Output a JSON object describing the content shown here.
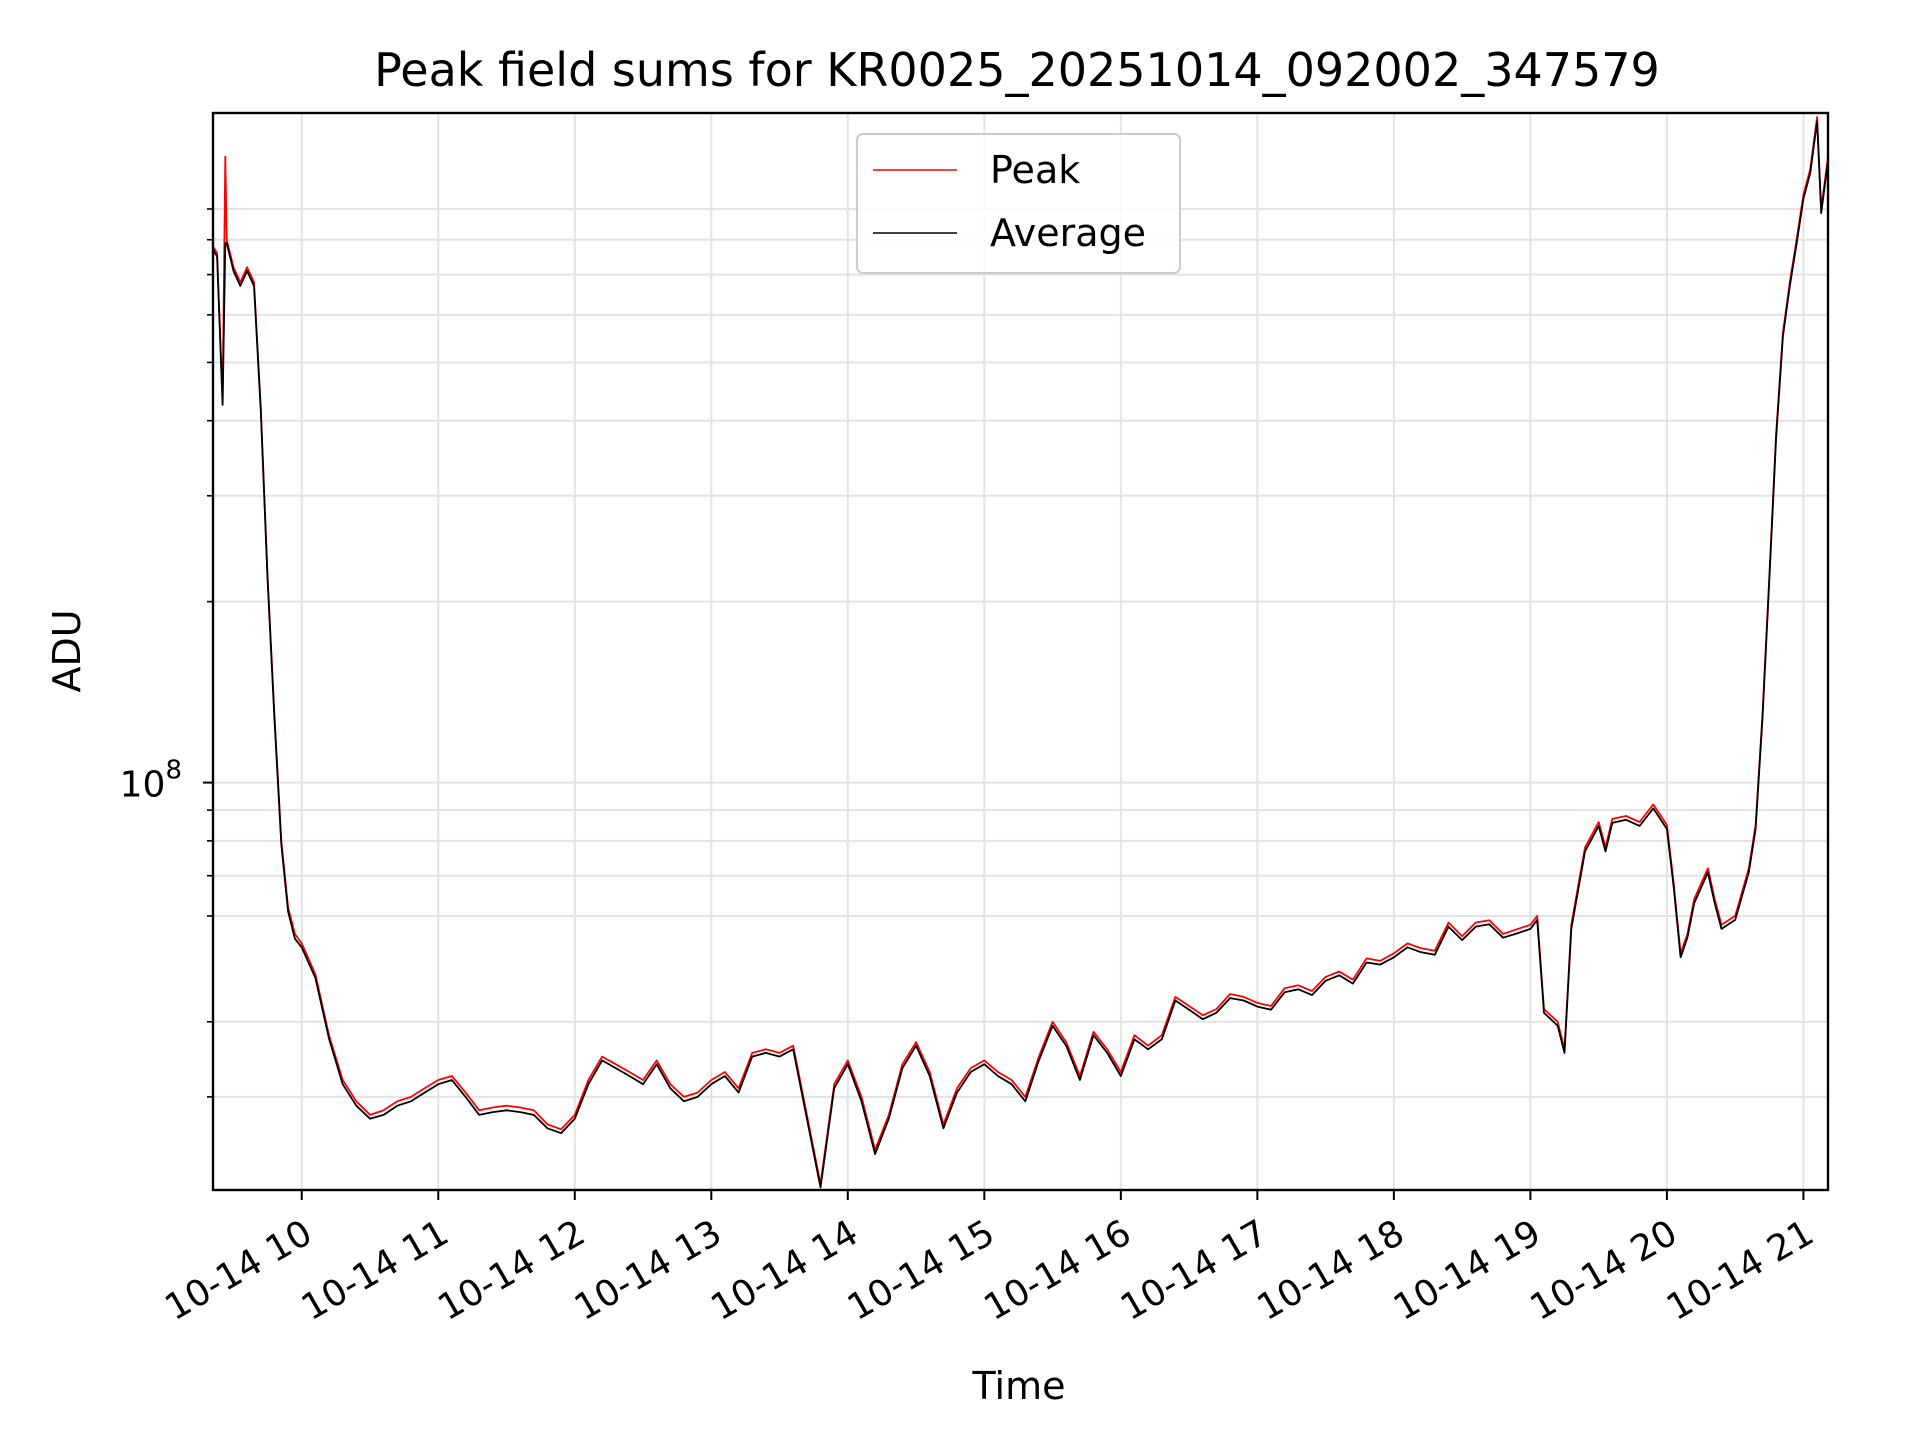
{
  "chart_data": {
    "type": "line",
    "title": "Peak field sums for KR0025_20251014_092002_347579",
    "xlabel": "Time",
    "ylabel": "ADU",
    "yscale": "log",
    "ylim": [
      21000000,
      1300000000
    ],
    "xlim_hours": [
      9.35,
      21.18
    ],
    "grid": true,
    "legend_position": "top-center",
    "x_tick_labels": [
      {
        "label": "10-14 10",
        "hour": 10
      },
      {
        "label": "10-14 11",
        "hour": 11
      },
      {
        "label": "10-14 12",
        "hour": 12
      },
      {
        "label": "10-14 13",
        "hour": 13
      },
      {
        "label": "10-14 14",
        "hour": 14
      },
      {
        "label": "10-14 15",
        "hour": 15
      },
      {
        "label": "10-14 16",
        "hour": 16
      },
      {
        "label": "10-14 17",
        "hour": 17
      },
      {
        "label": "10-14 18",
        "hour": 18
      },
      {
        "label": "10-14 19",
        "hour": 19
      },
      {
        "label": "10-14 20",
        "hour": 20
      },
      {
        "label": "10-14 21",
        "hour": 21
      }
    ],
    "y_major_tick": {
      "base": "10",
      "exponent": "8",
      "value": 100000000
    },
    "y_minor_ticks": [
      30000000,
      40000000,
      60000000,
      70000000,
      80000000,
      90000000,
      200000000,
      300000000,
      400000000,
      500000000,
      600000000,
      700000000,
      800000000,
      900000000
    ],
    "series": [
      {
        "name": "Peak",
        "color": "#ff0000",
        "points": [
          [
            9.35,
            780000000
          ],
          [
            9.38,
            760000000
          ],
          [
            9.42,
            430000000
          ],
          [
            9.44,
            1100000000
          ],
          [
            9.45,
            800000000
          ],
          [
            9.5,
            720000000
          ],
          [
            9.55,
            680000000
          ],
          [
            9.6,
            720000000
          ],
          [
            9.65,
            680000000
          ],
          [
            9.7,
            420000000
          ],
          [
            9.75,
            220000000
          ],
          [
            9.8,
            130000000
          ],
          [
            9.85,
            80000000
          ],
          [
            9.9,
            62000000
          ],
          [
            9.95,
            56000000
          ],
          [
            10.0,
            54000000
          ],
          [
            10.1,
            48000000
          ],
          [
            10.2,
            38000000
          ],
          [
            10.3,
            32000000
          ],
          [
            10.4,
            29500000
          ],
          [
            10.5,
            28000000
          ],
          [
            10.6,
            28500000
          ],
          [
            10.7,
            29500000
          ],
          [
            10.8,
            30000000
          ],
          [
            10.9,
            31000000
          ],
          [
            11.0,
            32000000
          ],
          [
            11.1,
            32500000
          ],
          [
            11.2,
            30500000
          ],
          [
            11.3,
            28500000
          ],
          [
            11.4,
            28800000
          ],
          [
            11.5,
            29000000
          ],
          [
            11.6,
            28800000
          ],
          [
            11.7,
            28500000
          ],
          [
            11.8,
            27000000
          ],
          [
            11.9,
            26500000
          ],
          [
            12.0,
            28000000
          ],
          [
            12.1,
            32000000
          ],
          [
            12.2,
            35000000
          ],
          [
            12.3,
            34000000
          ],
          [
            12.4,
            33000000
          ],
          [
            12.5,
            32000000
          ],
          [
            12.6,
            34500000
          ],
          [
            12.7,
            31500000
          ],
          [
            12.8,
            30000000
          ],
          [
            12.9,
            30500000
          ],
          [
            13.0,
            32000000
          ],
          [
            13.1,
            33000000
          ],
          [
            13.2,
            31000000
          ],
          [
            13.3,
            35500000
          ],
          [
            13.4,
            36000000
          ],
          [
            13.5,
            35500000
          ],
          [
            13.6,
            36500000
          ],
          [
            13.7,
            28000000
          ],
          [
            13.8,
            21500000
          ],
          [
            13.9,
            31500000
          ],
          [
            14.0,
            34500000
          ],
          [
            14.1,
            30000000
          ],
          [
            14.2,
            24500000
          ],
          [
            14.3,
            28000000
          ],
          [
            14.4,
            34000000
          ],
          [
            14.5,
            37000000
          ],
          [
            14.6,
            33000000
          ],
          [
            14.7,
            27000000
          ],
          [
            14.8,
            31000000
          ],
          [
            14.9,
            33500000
          ],
          [
            15.0,
            34500000
          ],
          [
            15.1,
            33000000
          ],
          [
            15.2,
            32000000
          ],
          [
            15.3,
            30000000
          ],
          [
            15.4,
            35000000
          ],
          [
            15.5,
            40000000
          ],
          [
            15.6,
            37000000
          ],
          [
            15.7,
            32500000
          ],
          [
            15.8,
            38500000
          ],
          [
            15.9,
            36000000
          ],
          [
            16.0,
            33000000
          ],
          [
            16.1,
            38000000
          ],
          [
            16.2,
            36500000
          ],
          [
            16.3,
            38000000
          ],
          [
            16.4,
            44000000
          ],
          [
            16.5,
            42500000
          ],
          [
            16.6,
            41000000
          ],
          [
            16.7,
            42000000
          ],
          [
            16.8,
            44500000
          ],
          [
            16.9,
            44000000
          ],
          [
            17.0,
            43000000
          ],
          [
            17.1,
            42500000
          ],
          [
            17.2,
            45500000
          ],
          [
            17.3,
            46000000
          ],
          [
            17.4,
            45000000
          ],
          [
            17.5,
            47500000
          ],
          [
            17.6,
            48500000
          ],
          [
            17.7,
            47000000
          ],
          [
            17.8,
            51000000
          ],
          [
            17.9,
            50500000
          ],
          [
            18.0,
            52000000
          ],
          [
            18.1,
            54000000
          ],
          [
            18.2,
            53000000
          ],
          [
            18.3,
            52500000
          ],
          [
            18.4,
            58500000
          ],
          [
            18.5,
            55500000
          ],
          [
            18.6,
            58500000
          ],
          [
            18.7,
            59000000
          ],
          [
            18.8,
            56000000
          ],
          [
            18.9,
            57000000
          ],
          [
            19.0,
            58000000
          ],
          [
            19.05,
            60000000
          ],
          [
            19.1,
            42000000
          ],
          [
            19.2,
            40000000
          ],
          [
            19.25,
            36000000
          ],
          [
            19.3,
            58000000
          ],
          [
            19.4,
            78000000
          ],
          [
            19.5,
            86000000
          ],
          [
            19.55,
            78000000
          ],
          [
            19.6,
            87000000
          ],
          [
            19.7,
            88000000
          ],
          [
            19.8,
            86000000
          ],
          [
            19.9,
            92000000
          ],
          [
            20.0,
            85000000
          ],
          [
            20.05,
            68000000
          ],
          [
            20.1,
            52000000
          ],
          [
            20.15,
            56000000
          ],
          [
            20.2,
            64000000
          ],
          [
            20.3,
            72000000
          ],
          [
            20.35,
            64000000
          ],
          [
            20.4,
            58000000
          ],
          [
            20.5,
            60000000
          ],
          [
            20.6,
            72000000
          ],
          [
            20.65,
            85000000
          ],
          [
            20.7,
            130000000
          ],
          [
            20.75,
            220000000
          ],
          [
            20.8,
            380000000
          ],
          [
            20.85,
            560000000
          ],
          [
            20.9,
            680000000
          ],
          [
            20.95,
            800000000
          ],
          [
            21.0,
            950000000
          ],
          [
            21.05,
            1050000000
          ],
          [
            21.1,
            1280000000
          ],
          [
            21.13,
            900000000
          ],
          [
            21.18,
            1100000000
          ]
        ]
      },
      {
        "name": "Average",
        "color": "#000000",
        "points": [
          [
            9.35,
            770000000
          ],
          [
            9.38,
            750000000
          ],
          [
            9.42,
            425000000
          ],
          [
            9.44,
            790000000
          ],
          [
            9.45,
            790000000
          ],
          [
            9.5,
            710000000
          ],
          [
            9.55,
            670000000
          ],
          [
            9.6,
            710000000
          ],
          [
            9.65,
            670000000
          ],
          [
            9.7,
            415000000
          ],
          [
            9.75,
            217000000
          ],
          [
            9.8,
            128000000
          ],
          [
            9.85,
            79000000
          ],
          [
            9.9,
            61000000
          ],
          [
            9.95,
            55000000
          ],
          [
            10.0,
            53200000
          ],
          [
            10.1,
            47300000
          ],
          [
            10.2,
            37500000
          ],
          [
            10.3,
            31500000
          ],
          [
            10.4,
            29000000
          ],
          [
            10.5,
            27600000
          ],
          [
            10.6,
            28000000
          ],
          [
            10.7,
            29000000
          ],
          [
            10.8,
            29500000
          ],
          [
            10.9,
            30500000
          ],
          [
            11.0,
            31500000
          ],
          [
            11.1,
            32000000
          ],
          [
            11.2,
            30000000
          ],
          [
            11.3,
            28000000
          ],
          [
            11.4,
            28300000
          ],
          [
            11.5,
            28500000
          ],
          [
            11.6,
            28300000
          ],
          [
            11.7,
            28000000
          ],
          [
            11.8,
            26600000
          ],
          [
            11.9,
            26100000
          ],
          [
            12.0,
            27600000
          ],
          [
            12.1,
            31500000
          ],
          [
            12.2,
            34500000
          ],
          [
            12.3,
            33500000
          ],
          [
            12.4,
            32500000
          ],
          [
            12.5,
            31500000
          ],
          [
            12.6,
            34000000
          ],
          [
            12.7,
            31000000
          ],
          [
            12.8,
            29500000
          ],
          [
            12.9,
            30000000
          ],
          [
            13.0,
            31500000
          ],
          [
            13.1,
            32500000
          ],
          [
            13.2,
            30500000
          ],
          [
            13.3,
            35000000
          ],
          [
            13.4,
            35500000
          ],
          [
            13.5,
            35000000
          ],
          [
            13.6,
            36000000
          ],
          [
            13.7,
            27600000
          ],
          [
            13.8,
            21200000
          ],
          [
            13.9,
            31000000
          ],
          [
            14.0,
            34000000
          ],
          [
            14.1,
            29500000
          ],
          [
            14.2,
            24100000
          ],
          [
            14.3,
            27600000
          ],
          [
            14.4,
            33500000
          ],
          [
            14.5,
            36500000
          ],
          [
            14.6,
            32500000
          ],
          [
            14.7,
            26600000
          ],
          [
            14.8,
            30500000
          ],
          [
            14.9,
            33000000
          ],
          [
            15.0,
            34000000
          ],
          [
            15.1,
            32500000
          ],
          [
            15.2,
            31500000
          ],
          [
            15.3,
            29500000
          ],
          [
            15.4,
            34500000
          ],
          [
            15.5,
            39400000
          ],
          [
            15.6,
            36500000
          ],
          [
            15.7,
            32000000
          ],
          [
            15.8,
            38000000
          ],
          [
            15.9,
            35500000
          ],
          [
            16.0,
            32500000
          ],
          [
            16.1,
            37400000
          ],
          [
            16.2,
            36000000
          ],
          [
            16.3,
            37400000
          ],
          [
            16.4,
            43400000
          ],
          [
            16.5,
            41900000
          ],
          [
            16.6,
            40400000
          ],
          [
            16.7,
            41400000
          ],
          [
            16.8,
            43800000
          ],
          [
            16.9,
            43400000
          ],
          [
            17.0,
            42400000
          ],
          [
            17.1,
            41900000
          ],
          [
            17.2,
            44800000
          ],
          [
            17.3,
            45300000
          ],
          [
            17.4,
            44300000
          ],
          [
            17.5,
            46800000
          ],
          [
            17.6,
            47800000
          ],
          [
            17.7,
            46300000
          ],
          [
            17.8,
            50200000
          ],
          [
            17.9,
            49800000
          ],
          [
            18.0,
            51200000
          ],
          [
            18.1,
            53200000
          ],
          [
            18.2,
            52200000
          ],
          [
            18.3,
            51700000
          ],
          [
            18.4,
            57600000
          ],
          [
            18.5,
            54700000
          ],
          [
            18.6,
            57600000
          ],
          [
            18.7,
            58100000
          ],
          [
            18.8,
            55200000
          ],
          [
            18.9,
            56100000
          ],
          [
            19.0,
            57100000
          ],
          [
            19.05,
            59100000
          ],
          [
            19.1,
            41400000
          ],
          [
            19.2,
            39400000
          ],
          [
            19.25,
            35500000
          ],
          [
            19.3,
            57100000
          ],
          [
            19.4,
            76800000
          ],
          [
            19.5,
            84700000
          ],
          [
            19.55,
            76800000
          ],
          [
            19.6,
            85700000
          ],
          [
            19.7,
            86700000
          ],
          [
            19.8,
            84700000
          ],
          [
            19.9,
            90600000
          ],
          [
            20.0,
            83700000
          ],
          [
            20.05,
            67000000
          ],
          [
            20.1,
            51200000
          ],
          [
            20.15,
            55200000
          ],
          [
            20.2,
            63000000
          ],
          [
            20.3,
            70900000
          ],
          [
            20.35,
            63000000
          ],
          [
            20.4,
            57100000
          ],
          [
            20.5,
            59100000
          ],
          [
            20.6,
            70900000
          ],
          [
            20.65,
            83700000
          ],
          [
            20.7,
            128000000
          ],
          [
            20.75,
            217000000
          ],
          [
            20.8,
            374000000
          ],
          [
            20.85,
            552000000
          ],
          [
            20.9,
            670000000
          ],
          [
            20.95,
            788000000
          ],
          [
            21.0,
            936000000
          ],
          [
            21.05,
            1034000000
          ],
          [
            21.1,
            1260000000
          ],
          [
            21.13,
            886000000
          ],
          [
            21.18,
            1083000000
          ]
        ]
      }
    ]
  }
}
